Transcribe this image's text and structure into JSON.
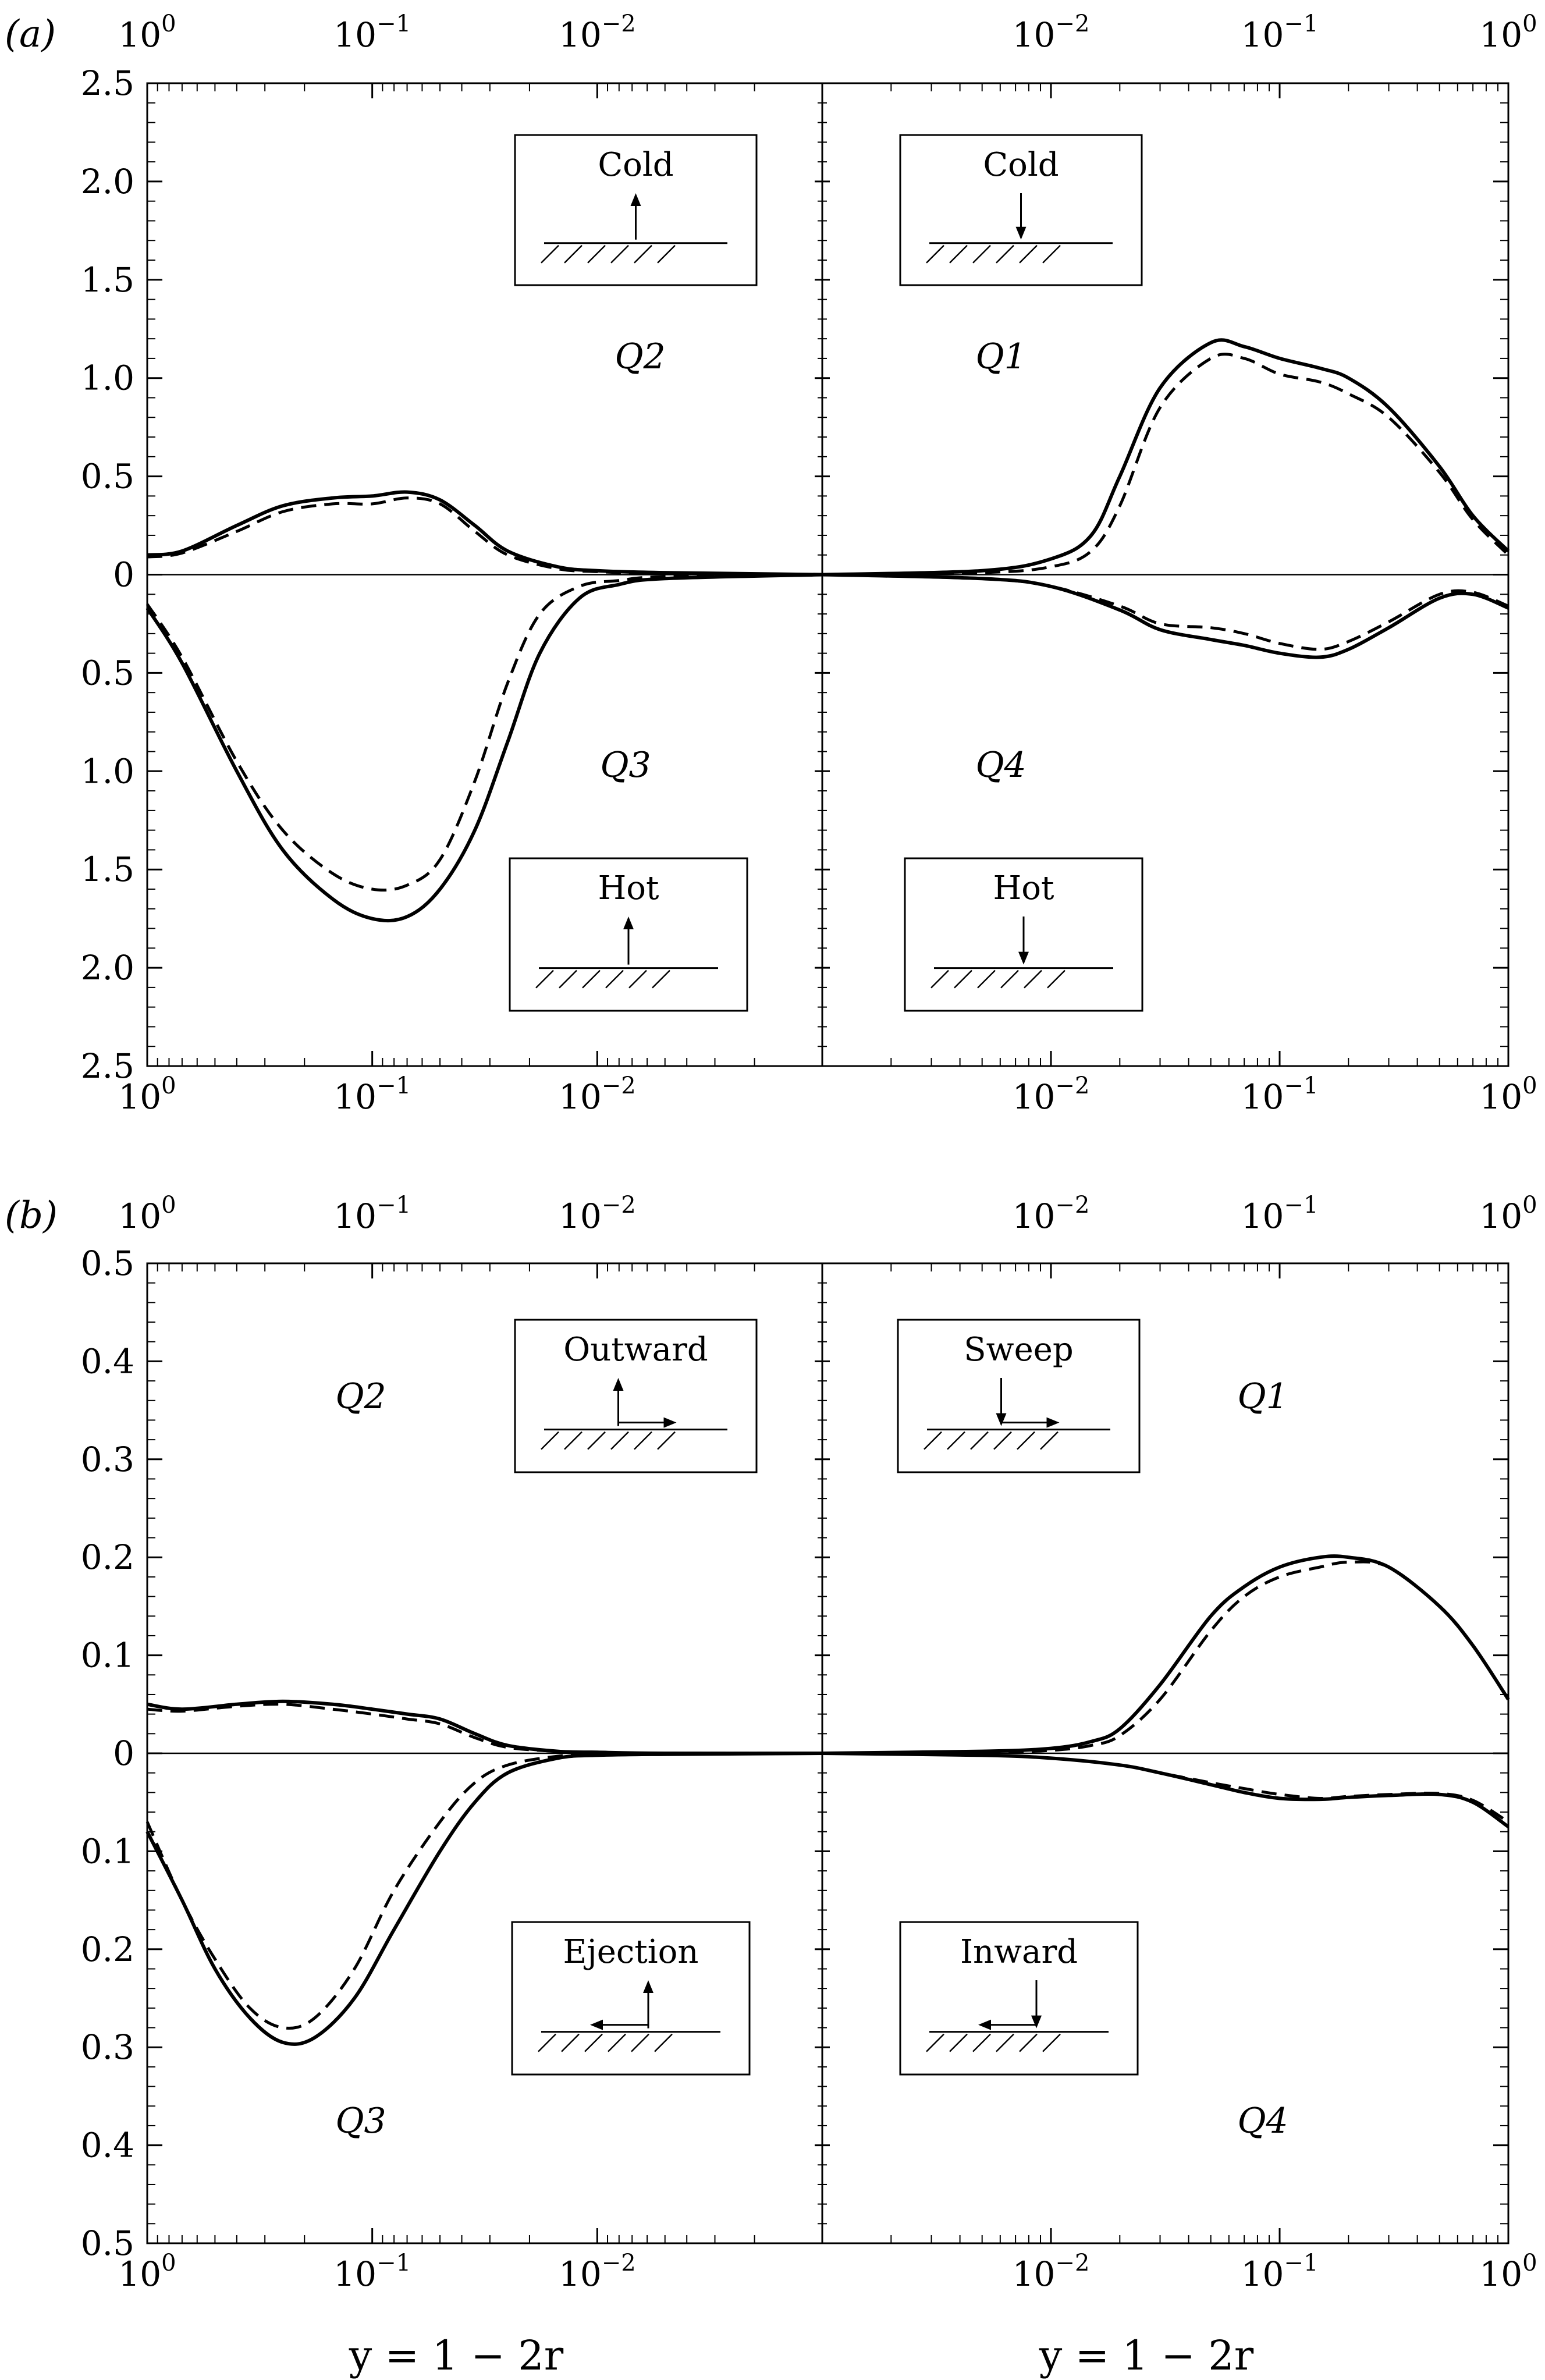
{
  "figure": {
    "panels": [
      {
        "id": "a",
        "label": "(a)",
        "y_ticks": [
          "2.5",
          "2.0",
          "1.5",
          "1.0",
          "0.5",
          "0",
          "0.5",
          "1.0",
          "1.5",
          "2.0",
          "2.5"
        ],
        "quadrants": {
          "Q1": "Q1",
          "Q2": "Q2",
          "Q3": "Q3",
          "Q4": "Q4"
        },
        "insets": {
          "Q2": "Cold",
          "Q1": "Cold",
          "Q3": "Hot",
          "Q4": "Hot"
        }
      },
      {
        "id": "b",
        "label": "(b)",
        "y_ticks": [
          "0.5",
          "0.4",
          "0.3",
          "0.2",
          "0.1",
          "0",
          "0.1",
          "0.2",
          "0.3",
          "0.4",
          "0.5"
        ],
        "quadrants": {
          "Q1": "Q1",
          "Q2": "Q2",
          "Q3": "Q3",
          "Q4": "Q4"
        },
        "insets": {
          "Q2": "Outward",
          "Q1": "Sweep",
          "Q3": "Ejection",
          "Q4": "Inward"
        }
      }
    ],
    "x_tick_base": "10",
    "x_ticks_left": [
      {
        "exp": "0"
      },
      {
        "exp": "−1"
      },
      {
        "exp": "−2"
      }
    ],
    "x_ticks_right": [
      {
        "exp": "−2"
      },
      {
        "exp": "−1"
      },
      {
        "exp": "0"
      }
    ],
    "xlabel": "y = 1 − 2r"
  },
  "chart_data": [
    {
      "type": "line",
      "title": "(a)",
      "xlabel": "y = 1 − 2r",
      "ylabel": "",
      "x_scale": "log",
      "xlim_left_half": [
        1.0,
        0.001
      ],
      "xlim_right_half": [
        0.001,
        1.0
      ],
      "ylim": [
        -2.5,
        2.5
      ],
      "note": "Upper half plots Q2 (left) and Q1 (right); lower half plots Q3 (left) and Q4 (right) as magnitudes below zero.",
      "series": [
        {
          "name": "Q2 solid",
          "quadrant": "Q2",
          "style": "solid",
          "x": [
            1.0,
            0.7,
            0.4,
            0.25,
            0.15,
            0.1,
            0.07,
            0.05,
            0.035,
            0.025,
            0.015,
            0.01,
            0.005,
            0.001
          ],
          "y": [
            0.1,
            0.12,
            0.25,
            0.35,
            0.39,
            0.4,
            0.42,
            0.38,
            0.25,
            0.12,
            0.04,
            0.02,
            0.01,
            0.0
          ]
        },
        {
          "name": "Q2 dashed",
          "quadrant": "Q2",
          "style": "dashed",
          "x": [
            1.0,
            0.7,
            0.4,
            0.25,
            0.15,
            0.1,
            0.07,
            0.05,
            0.035,
            0.025,
            0.015,
            0.01,
            0.005,
            0.001
          ],
          "y": [
            0.09,
            0.11,
            0.22,
            0.32,
            0.36,
            0.36,
            0.39,
            0.36,
            0.22,
            0.1,
            0.03,
            0.015,
            0.005,
            0.0
          ]
        },
        {
          "name": "Q3 solid",
          "quadrant": "Q3",
          "style": "solid",
          "x": [
            1.0,
            0.7,
            0.4,
            0.25,
            0.15,
            0.1,
            0.07,
            0.05,
            0.035,
            0.025,
            0.018,
            0.012,
            0.008,
            0.005,
            0.001
          ],
          "y": [
            -0.17,
            -0.45,
            -1.0,
            -1.4,
            -1.65,
            -1.75,
            -1.74,
            -1.6,
            -1.3,
            -0.85,
            -0.4,
            -0.12,
            -0.05,
            -0.02,
            0.0
          ]
        },
        {
          "name": "Q3 dashed",
          "quadrant": "Q3",
          "style": "dashed",
          "x": [
            1.0,
            0.7,
            0.4,
            0.25,
            0.15,
            0.1,
            0.07,
            0.05,
            0.035,
            0.025,
            0.018,
            0.012,
            0.008,
            0.005,
            0.001
          ],
          "y": [
            -0.15,
            -0.42,
            -0.95,
            -1.3,
            -1.52,
            -1.6,
            -1.58,
            -1.45,
            -1.05,
            -0.55,
            -0.2,
            -0.06,
            -0.03,
            -0.01,
            0.0
          ]
        },
        {
          "name": "Q1 solid",
          "quadrant": "Q1",
          "style": "solid",
          "x": [
            0.001,
            0.005,
            0.01,
            0.015,
            0.02,
            0.03,
            0.05,
            0.07,
            0.1,
            0.15,
            0.2,
            0.3,
            0.5,
            0.7,
            1.0
          ],
          "y": [
            0.0,
            0.02,
            0.08,
            0.2,
            0.5,
            0.95,
            1.18,
            1.16,
            1.1,
            1.05,
            1.0,
            0.85,
            0.55,
            0.3,
            0.12
          ]
        },
        {
          "name": "Q1 dashed",
          "quadrant": "Q1",
          "style": "dashed",
          "x": [
            0.001,
            0.005,
            0.01,
            0.015,
            0.02,
            0.03,
            0.05,
            0.07,
            0.1,
            0.15,
            0.2,
            0.3,
            0.5,
            0.7,
            1.0
          ],
          "y": [
            0.0,
            0.01,
            0.04,
            0.12,
            0.35,
            0.85,
            1.1,
            1.1,
            1.02,
            0.98,
            0.92,
            0.8,
            0.52,
            0.28,
            0.1
          ]
        },
        {
          "name": "Q4 solid",
          "quadrant": "Q4",
          "style": "solid",
          "x": [
            0.001,
            0.005,
            0.01,
            0.02,
            0.03,
            0.05,
            0.07,
            0.1,
            0.15,
            0.2,
            0.3,
            0.5,
            0.7,
            1.0
          ],
          "y": [
            0.0,
            -0.02,
            -0.06,
            -0.18,
            -0.28,
            -0.33,
            -0.36,
            -0.4,
            -0.42,
            -0.38,
            -0.27,
            -0.12,
            -0.1,
            -0.17
          ]
        },
        {
          "name": "Q4 dashed",
          "quadrant": "Q4",
          "style": "dashed",
          "x": [
            0.001,
            0.005,
            0.01,
            0.02,
            0.03,
            0.05,
            0.07,
            0.1,
            0.15,
            0.2,
            0.3,
            0.5,
            0.7,
            1.0
          ],
          "y": [
            0.0,
            -0.02,
            -0.06,
            -0.16,
            -0.25,
            -0.27,
            -0.3,
            -0.35,
            -0.38,
            -0.34,
            -0.24,
            -0.1,
            -0.09,
            -0.16
          ]
        }
      ]
    },
    {
      "type": "line",
      "title": "(b)",
      "xlabel": "y = 1 − 2r",
      "ylabel": "",
      "x_scale": "log",
      "xlim_left_half": [
        1.0,
        0.001
      ],
      "xlim_right_half": [
        0.001,
        1.0
      ],
      "ylim": [
        -0.5,
        0.5
      ],
      "note": "Upper half plots Q2 (left) and Q1 (right); lower half plots Q3 (left) and Q4 (right) as magnitudes below zero.",
      "series": [
        {
          "name": "Q2 solid",
          "quadrant": "Q2",
          "style": "solid",
          "x": [
            1.0,
            0.7,
            0.4,
            0.25,
            0.15,
            0.1,
            0.07,
            0.05,
            0.035,
            0.025,
            0.015,
            0.01,
            0.005,
            0.001
          ],
          "y": [
            0.05,
            0.045,
            0.05,
            0.053,
            0.05,
            0.045,
            0.04,
            0.035,
            0.02,
            0.008,
            0.002,
            0.001,
            0.0,
            0.0
          ]
        },
        {
          "name": "Q2 dashed",
          "quadrant": "Q2",
          "style": "dashed",
          "x": [
            1.0,
            0.7,
            0.4,
            0.25,
            0.15,
            0.1,
            0.07,
            0.05,
            0.035,
            0.025,
            0.015,
            0.01,
            0.005,
            0.001
          ],
          "y": [
            0.045,
            0.043,
            0.048,
            0.05,
            0.045,
            0.04,
            0.035,
            0.03,
            0.016,
            0.006,
            0.002,
            0.001,
            0.0,
            0.0
          ]
        },
        {
          "name": "Q3 solid",
          "quadrant": "Q3",
          "style": "solid",
          "x": [
            1.0,
            0.7,
            0.5,
            0.35,
            0.25,
            0.18,
            0.12,
            0.08,
            0.05,
            0.035,
            0.025,
            0.015,
            0.01,
            0.005,
            0.001
          ],
          "y": [
            -0.08,
            -0.15,
            -0.22,
            -0.27,
            -0.295,
            -0.29,
            -0.25,
            -0.18,
            -0.1,
            -0.05,
            -0.02,
            -0.005,
            -0.002,
            -0.001,
            0.0
          ]
        },
        {
          "name": "Q3 dashed",
          "quadrant": "Q3",
          "style": "dashed",
          "x": [
            1.0,
            0.7,
            0.5,
            0.35,
            0.25,
            0.18,
            0.12,
            0.08,
            0.05,
            0.035,
            0.025,
            0.015,
            0.01,
            0.005,
            0.001
          ],
          "y": [
            -0.07,
            -0.15,
            -0.21,
            -0.26,
            -0.28,
            -0.27,
            -0.22,
            -0.14,
            -0.07,
            -0.03,
            -0.012,
            -0.003,
            -0.001,
            0.0,
            0.0
          ]
        },
        {
          "name": "Q1 solid",
          "quadrant": "Q1",
          "style": "solid",
          "x": [
            0.001,
            0.005,
            0.01,
            0.015,
            0.02,
            0.03,
            0.05,
            0.07,
            0.1,
            0.15,
            0.2,
            0.3,
            0.5,
            0.7,
            1.0
          ],
          "y": [
            0.0,
            0.002,
            0.005,
            0.012,
            0.025,
            0.07,
            0.14,
            0.17,
            0.19,
            0.2,
            0.2,
            0.19,
            0.15,
            0.11,
            0.055
          ]
        },
        {
          "name": "Q1 dashed",
          "quadrant": "Q1",
          "style": "dashed",
          "x": [
            0.001,
            0.005,
            0.01,
            0.015,
            0.02,
            0.03,
            0.05,
            0.07,
            0.1,
            0.15,
            0.2,
            0.3,
            0.5,
            0.7,
            1.0
          ],
          "y": [
            0.0,
            0.001,
            0.003,
            0.008,
            0.018,
            0.055,
            0.125,
            0.16,
            0.18,
            0.19,
            0.195,
            0.19,
            0.15,
            0.11,
            0.055
          ]
        },
        {
          "name": "Q4 solid",
          "quadrant": "Q4",
          "style": "solid",
          "x": [
            0.001,
            0.005,
            0.01,
            0.02,
            0.03,
            0.05,
            0.07,
            0.1,
            0.15,
            0.2,
            0.3,
            0.5,
            0.7,
            1.0
          ],
          "y": [
            0.0,
            -0.002,
            -0.005,
            -0.012,
            -0.02,
            -0.032,
            -0.04,
            -0.046,
            -0.047,
            -0.045,
            -0.043,
            -0.042,
            -0.05,
            -0.075
          ]
        },
        {
          "name": "Q4 dashed",
          "quadrant": "Q4",
          "style": "dashed",
          "x": [
            0.001,
            0.005,
            0.01,
            0.02,
            0.03,
            0.05,
            0.07,
            0.1,
            0.15,
            0.2,
            0.3,
            0.5,
            0.7,
            1.0
          ],
          "y": [
            0.0,
            -0.002,
            -0.005,
            -0.012,
            -0.02,
            -0.03,
            -0.036,
            -0.042,
            -0.046,
            -0.044,
            -0.042,
            -0.041,
            -0.048,
            -0.07
          ]
        }
      ]
    }
  ]
}
